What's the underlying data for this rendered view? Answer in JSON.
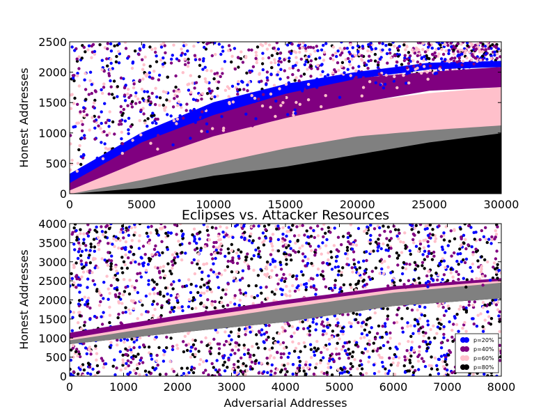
{
  "chart_data": [
    {
      "type": "scatter",
      "title": "",
      "xlabel": "",
      "ylabel": "Honest Addresses",
      "xlim": [
        0,
        30000
      ],
      "ylim": [
        0,
        2500
      ],
      "xticks": [
        0,
        5000,
        10000,
        15000,
        20000,
        25000,
        30000
      ],
      "yticks": [
        0,
        500,
        1000,
        1500,
        2000,
        2500
      ],
      "grid": false,
      "legend": "none",
      "series": [
        {
          "color": "#0000ff",
          "band_x": [
            0,
            5000,
            10000,
            15000,
            20000,
            25000,
            30000
          ],
          "band_low": [
            180,
            850,
            1300,
            1650,
            1900,
            2050,
            2090
          ],
          "band_high": [
            320,
            1000,
            1500,
            1800,
            2000,
            2150,
            2180
          ]
        },
        {
          "color": "#800080",
          "band_x": [
            0,
            5000,
            10000,
            15000,
            20000,
            25000,
            30000
          ],
          "band_low": [
            60,
            550,
            950,
            1250,
            1500,
            1700,
            1760
          ],
          "band_high": [
            180,
            850,
            1300,
            1650,
            1900,
            2000,
            2080
          ]
        },
        {
          "color": "#ffc0cb",
          "band_x": [
            0,
            5000,
            10000,
            15000,
            20000,
            25000,
            30000
          ],
          "band_low": [
            0,
            230,
            500,
            750,
            950,
            1050,
            1130
          ],
          "band_high": [
            60,
            550,
            950,
            1250,
            1500,
            1650,
            1750
          ]
        },
        {
          "color": "#808080",
          "band_x": [
            0,
            5000,
            10000,
            15000,
            20000,
            25000,
            30000
          ],
          "band_low": [
            0,
            100,
            300,
            450,
            650,
            850,
            1000
          ],
          "band_high": [
            0,
            230,
            500,
            750,
            950,
            1050,
            1130
          ]
        },
        {
          "color": "#000000",
          "band_x": [
            0,
            5000,
            10000,
            15000,
            20000,
            25000,
            30000
          ],
          "band_low": [
            0,
            0,
            0,
            0,
            0,
            0,
            0
          ],
          "band_high": [
            0,
            100,
            300,
            450,
            650,
            850,
            1000
          ]
        }
      ]
    },
    {
      "type": "scatter",
      "title": "Eclipses vs. Attacker Resources",
      "xlabel": "Adversarial Addresses",
      "ylabel": "Honest Addresses",
      "xlim": [
        0,
        8000
      ],
      "ylim": [
        0,
        4000
      ],
      "xticks": [
        0,
        1000,
        2000,
        3000,
        4000,
        5000,
        6000,
        7000,
        8000
      ],
      "yticks": [
        0,
        500,
        1000,
        1500,
        2000,
        2500,
        3000,
        3500,
        4000
      ],
      "grid": false,
      "legend": "lower-right",
      "series": [
        {
          "name": "p=20%",
          "color": "#0000ff"
        },
        {
          "name": "p=40%",
          "color": "#800080",
          "band_x": [
            0,
            2000,
            4000,
            6000,
            8000
          ],
          "band_low": [
            1000,
            1480,
            1900,
            2280,
            2510
          ],
          "band_high": [
            1130,
            1580,
            1990,
            2350,
            2560
          ]
        },
        {
          "name": "p=60%",
          "color": "#ffc0cb",
          "band_x": [
            0,
            2000,
            4000,
            6000,
            8000
          ],
          "band_low": [
            950,
            1380,
            1800,
            2200,
            2460
          ],
          "band_high": [
            1000,
            1480,
            1900,
            2280,
            2510
          ]
        },
        {
          "name": "p=80%",
          "color": "#000000",
          "band_x": [
            0,
            2000,
            4000,
            6000,
            8000
          ],
          "band_low": [
            850,
            1150,
            1430,
            1850,
            2050
          ],
          "band_high": [
            1000,
            1480,
            1900,
            2280,
            2510
          ]
        }
      ],
      "gray_band": {
        "color": "#808080",
        "band_x": [
          0,
          2000,
          4000,
          6000,
          8000
        ],
        "band_low": [
          850,
          1150,
          1430,
          1850,
          2050
        ],
        "band_high": [
          950,
          1380,
          1800,
          2200,
          2460
        ]
      }
    }
  ]
}
